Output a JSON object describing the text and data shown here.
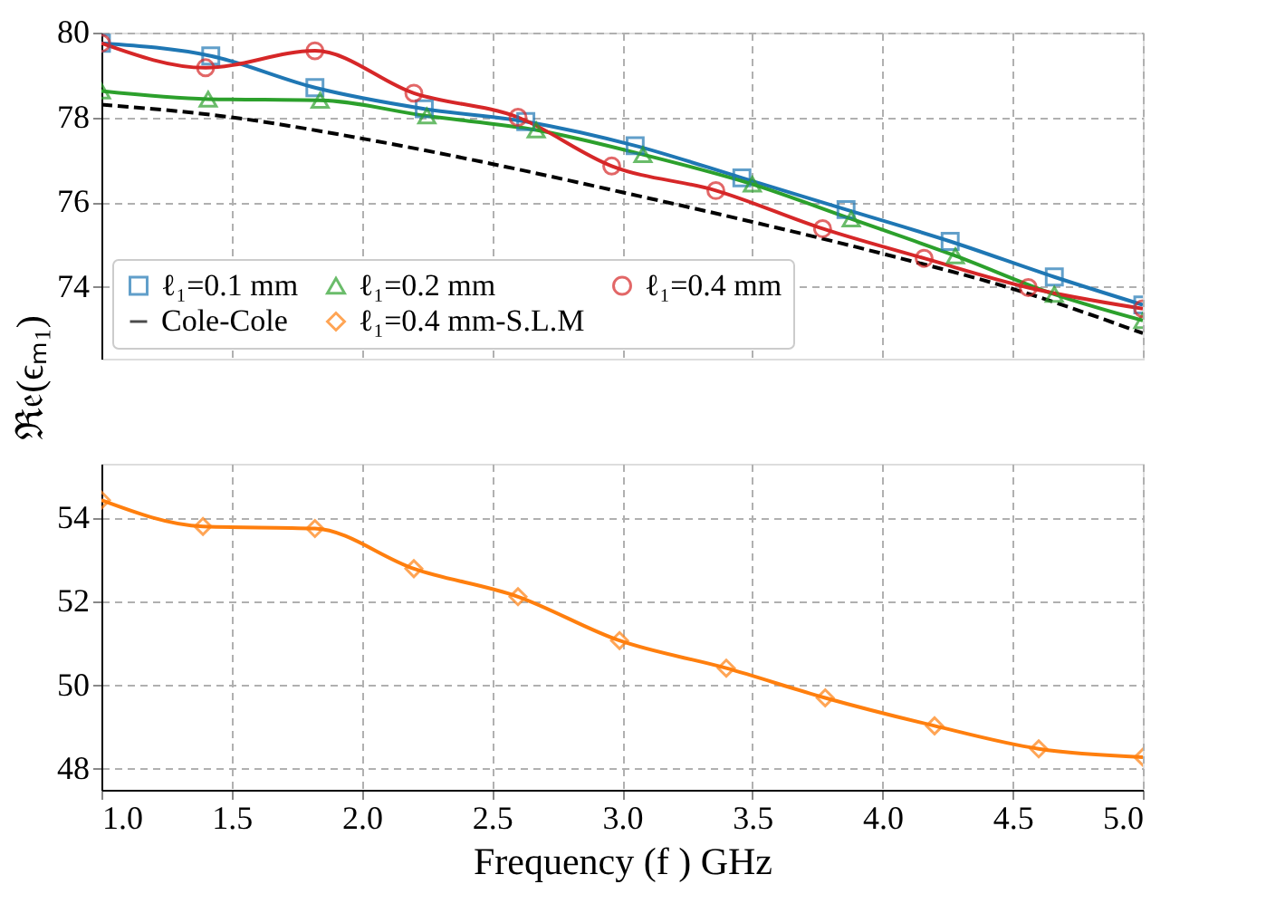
{
  "chart_data": [
    {
      "type": "line",
      "ylabel": "ℜ𝔢(ϵₘ₁)",
      "xlim": [
        1.0,
        5.0
      ],
      "xticks": [
        1.0,
        1.5,
        2.0,
        2.5,
        3.0,
        3.5,
        4.0,
        4.5,
        5.0
      ],
      "ylim": [
        72.3,
        80
      ],
      "yticks": [
        74,
        76,
        78,
        80
      ],
      "tick_labels": "y",
      "grid": true,
      "legend": "bottom left",
      "series": [
        {
          "name": "ℓ₁=0.1 mm",
          "color": "#1f77b4",
          "marker": "square",
          "line_style": "solid",
          "x": [
            1.0,
            1.42,
            1.82,
            2.24,
            2.63,
            3.05,
            3.46,
            3.86,
            4.26,
            4.66,
            5.0
          ],
          "values": [
            79.75,
            79.45,
            78.7,
            78.2,
            77.9,
            77.33,
            76.57,
            75.82,
            75.07,
            74.23,
            73.57
          ]
        },
        {
          "name": "ℓ₁=0.2 mm",
          "color": "#2ca02c",
          "marker": "triangle",
          "line_style": "solid",
          "x": [
            1.0,
            1.41,
            1.84,
            2.25,
            2.67,
            3.08,
            3.5,
            3.88,
            4.28,
            4.66,
            5.0
          ],
          "values": [
            78.62,
            78.43,
            78.4,
            78.03,
            77.7,
            77.12,
            76.42,
            75.6,
            74.73,
            73.82,
            73.2
          ]
        },
        {
          "name": "ℓ₁=0.4 mm",
          "color": "#d62728",
          "marker": "circle",
          "line_style": "solid",
          "x": [
            1.0,
            1.4,
            1.82,
            2.2,
            2.6,
            2.96,
            3.36,
            3.77,
            4.16,
            4.56,
            5.0
          ],
          "values": [
            79.75,
            79.17,
            79.57,
            78.57,
            78.0,
            76.85,
            76.27,
            75.37,
            74.67,
            73.98,
            73.48
          ]
        },
        {
          "name": "Cole-Cole",
          "color": "#000000",
          "marker": "none",
          "line_style": "dashed",
          "x": [
            1.0,
            1.5,
            2.0,
            2.5,
            3.0,
            3.5,
            4.0,
            4.5,
            5.0
          ],
          "values": [
            78.3,
            78.0,
            77.5,
            76.9,
            76.23,
            75.53,
            74.78,
            73.95,
            72.9
          ]
        }
      ]
    },
    {
      "type": "line",
      "xlabel": "Frequency (f ) GHz",
      "xlim": [
        1.0,
        5.0
      ],
      "xticks": [
        {
          "value": 1.0,
          "label": "1.0"
        },
        {
          "value": 1.5,
          "label": "1.5"
        },
        {
          "value": 2.0,
          "label": "2.0"
        },
        {
          "value": 2.5,
          "label": "2.5"
        },
        {
          "value": 3.0,
          "label": "3.0"
        },
        {
          "value": 3.5,
          "label": "3.5"
        },
        {
          "value": 4.0,
          "label": "4.0"
        },
        {
          "value": 4.5,
          "label": "4.5"
        },
        {
          "value": 5.0,
          "label": "5.0"
        }
      ],
      "ylim": [
        47.5,
        55.3
      ],
      "yticks": [
        48,
        50,
        52,
        54
      ],
      "grid": true,
      "series": [
        {
          "name": "ℓ₁=0.4 mm-S.L.M",
          "color": "#ff7f0e",
          "marker": "diamond",
          "line_style": "solid",
          "x": [
            1.0,
            1.39,
            1.82,
            2.2,
            2.6,
            2.99,
            3.4,
            3.78,
            4.2,
            4.6,
            5.0
          ],
          "values": [
            54.43,
            53.8,
            53.75,
            52.79,
            52.12,
            51.07,
            50.41,
            49.7,
            49.03,
            48.48,
            48.28
          ]
        }
      ]
    }
  ]
}
